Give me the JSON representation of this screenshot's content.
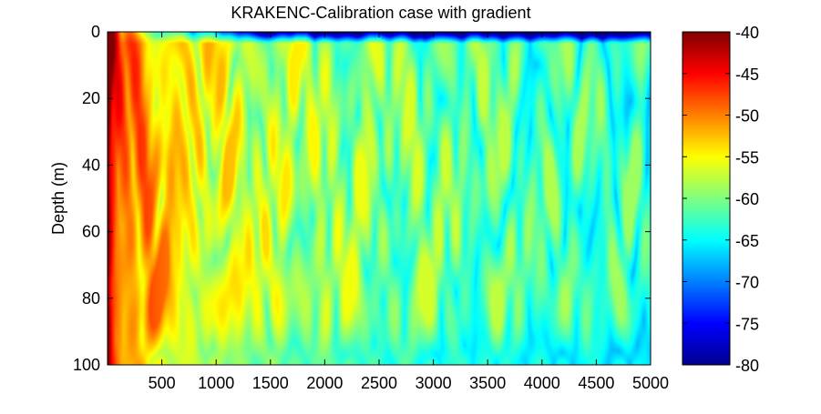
{
  "chart_data": {
    "type": "heatmap",
    "title": "KRAKENC-Calibration case with gradient",
    "xlabel": "",
    "ylabel": "Depth (m)",
    "xlim": [
      0,
      5000
    ],
    "ylim": [
      0,
      100
    ],
    "y_reversed": true,
    "xticks": [
      500,
      1000,
      1500,
      2000,
      2500,
      3000,
      3500,
      4000,
      4500,
      5000
    ],
    "yticks": [
      0,
      20,
      40,
      60,
      80,
      100
    ],
    "colorbar": {
      "colormap": "jet",
      "range": [
        -80,
        -40
      ],
      "ticks": [
        -40,
        -45,
        -50,
        -55,
        -60,
        -65,
        -70,
        -75,
        -80
      ]
    },
    "description_of_field": "Interference pattern of transmission loss vs range and depth; strongest (about -40) near the source at shallow ranges, decaying to about -65 to -75 at far ranges, with a strong near-surface minimum (about -80) in the top few metres beyond 1500 m."
  }
}
